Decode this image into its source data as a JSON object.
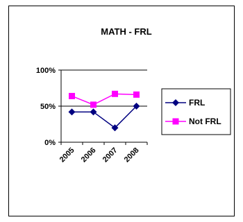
{
  "chart_data": {
    "type": "line",
    "title": "MATH - FRL",
    "categories": [
      "2005",
      "2006",
      "2007",
      "2008"
    ],
    "ylim": [
      0,
      100
    ],
    "yticks": [
      0,
      50,
      100
    ],
    "ytick_labels": [
      "0%",
      "50%",
      "100%"
    ],
    "grid": true,
    "legend_position": "right",
    "series": [
      {
        "name": "FRL",
        "values": [
          42,
          42,
          20,
          50
        ],
        "color": "#000080",
        "marker": "diamond"
      },
      {
        "name": "Not FRL",
        "values": [
          64,
          52,
          67,
          66
        ],
        "color": "#ff00ff",
        "marker": "square"
      }
    ]
  }
}
